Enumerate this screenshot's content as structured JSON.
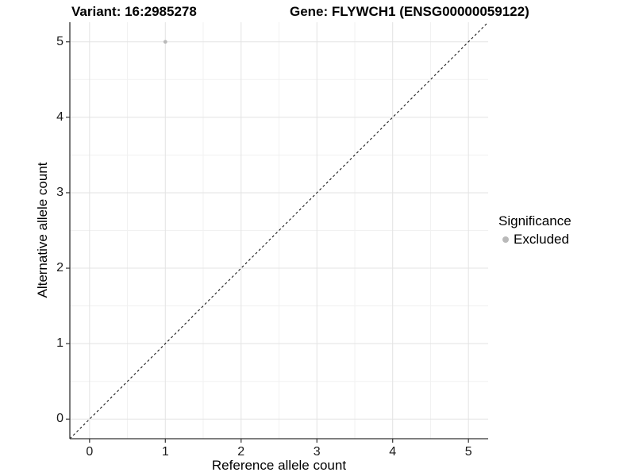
{
  "header": {
    "variant_title": "Variant: 16:2985278",
    "gene_title": "Gene: FLYWCH1 (ENSG00000059122)"
  },
  "chart_data": {
    "type": "scatter",
    "title": "Variant: 16:2985278   Gene: FLYWCH1 (ENSG00000059122)",
    "xlabel": "Reference allele count",
    "ylabel": "Alternative allele count",
    "xlim": [
      -0.26,
      5.26
    ],
    "ylim": [
      -0.26,
      5.26
    ],
    "x_ticks": [
      0,
      1,
      2,
      3,
      4,
      5
    ],
    "y_ticks": [
      0,
      1,
      2,
      3,
      4,
      5
    ],
    "minor_ticks": [
      0.5,
      1.5,
      2.5,
      3.5,
      4.5
    ],
    "grid": true,
    "series": [
      {
        "name": "Excluded",
        "color": "#b9b9b9",
        "points": [
          {
            "x": 1,
            "y": 5
          }
        ]
      }
    ],
    "reference_line": {
      "type": "abline",
      "intercept": 0,
      "slope": 1,
      "style": "dashed",
      "color": "#1a1a1a"
    },
    "legend": {
      "title": "Significance",
      "position": "right",
      "items": [
        {
          "label": "Excluded",
          "color": "#b9b9b9"
        }
      ]
    },
    "colors": {
      "grid_major": "#e3e3e3",
      "grid_minor": "#f1f1f1",
      "axis": "#333333",
      "background": "#ffffff"
    }
  }
}
